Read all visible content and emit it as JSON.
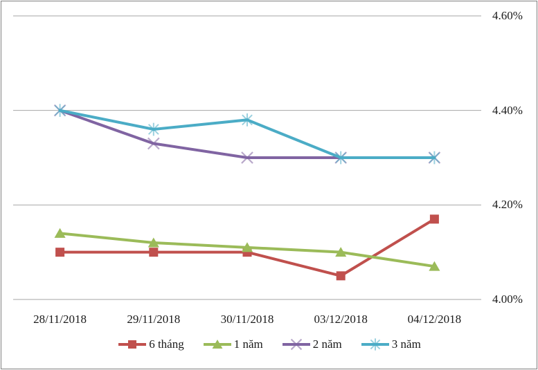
{
  "chart_data": {
    "type": "line",
    "title": "",
    "xlabel": "",
    "ylabel": "",
    "categories": [
      "28/11/2018",
      "29/11/2018",
      "30/11/2018",
      "03/12/2018",
      "04/12/2018"
    ],
    "series": [
      {
        "name": "6 tháng",
        "color": "#C0504D",
        "marker": "square",
        "values": [
          4.1,
          4.1,
          4.1,
          4.05,
          4.17
        ]
      },
      {
        "name": "1 năm",
        "color": "#9BBB59",
        "marker": "triangle",
        "values": [
          4.14,
          4.12,
          4.11,
          4.1,
          4.07
        ]
      },
      {
        "name": "2 năm",
        "color": "#8064A2",
        "marker": "x",
        "values": [
          4.4,
          4.33,
          4.3,
          4.3,
          4.3
        ]
      },
      {
        "name": "3 năm",
        "color": "#4BACC6",
        "marker": "asterisk",
        "values": [
          4.4,
          4.36,
          4.38,
          4.3,
          4.3
        ]
      }
    ],
    "yticks": [
      {
        "label": "4.60%",
        "value": 4.6
      },
      {
        "label": "4.40%",
        "value": 4.4
      },
      {
        "label": "4.20%",
        "value": 4.2
      },
      {
        "label": "4.00%",
        "value": 4.0
      }
    ],
    "ylim": [
      4.0,
      4.6
    ],
    "grid": true,
    "legend_position": "bottom"
  },
  "colors": {
    "gridline": "#A6A6A6",
    "frame_border": "#7F7F7F",
    "text": "#1a1a1a",
    "background": "#FFFFFF"
  }
}
